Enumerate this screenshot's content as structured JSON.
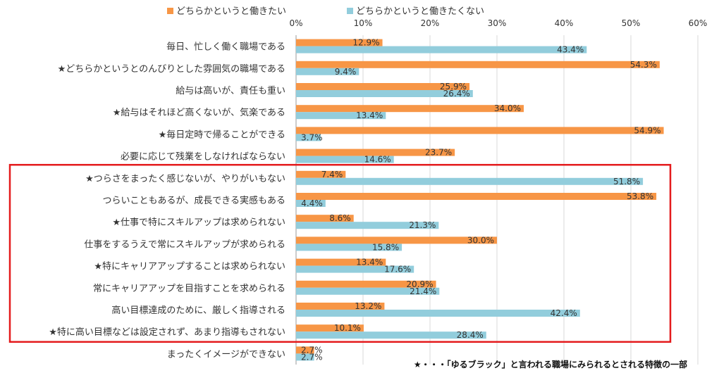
{
  "chart_data": {
    "type": "bar",
    "orientation": "horizontal",
    "xlim": [
      0,
      60
    ],
    "ticks": [
      0,
      10,
      20,
      30,
      40,
      50,
      60
    ],
    "tick_suffix": "%",
    "grid": true,
    "legend_position": "top",
    "categories": [
      "毎日、忙しく働く職場である",
      "★どちらかというとのんびりとした雰囲気の職場である",
      "給与は高いが、責任も重い",
      "★給与はそれほど高くないが、気楽である",
      "★毎日定時で帰ることができる",
      "必要に応じて残業をしなければならない",
      "★つらさをまったく感じないが、やりがいもない",
      "つらいこともあるが、成長できる実感もある",
      "★仕事で特にスキルアップは求められない",
      "仕事をするうえで常にスキルアップが求められる",
      "★特にキャリアアップすることは求められない",
      "常にキャリアアップを目指すことを求められる",
      "高い目標達成のために、厳しく指導される",
      "★特に高い目標などは設定されず、あまり指導もされない",
      "まったくイメージができない"
    ],
    "series": [
      {
        "name": "どちらかというと働きたい",
        "color": "#F79646",
        "values": [
          12.9,
          54.3,
          25.9,
          34.0,
          54.9,
          23.7,
          7.4,
          53.8,
          8.6,
          30.0,
          13.4,
          20.9,
          13.2,
          10.1,
          2.7
        ]
      },
      {
        "name": "どちらかというと働きたくない",
        "color": "#92CDDC",
        "values": [
          43.4,
          9.4,
          26.4,
          13.4,
          3.7,
          14.6,
          51.8,
          4.4,
          21.3,
          15.8,
          17.6,
          21.4,
          42.4,
          28.4,
          2.7
        ]
      }
    ],
    "highlight_range": [
      6,
      13
    ],
    "highlight_color": "#E41A1C",
    "footnote": "★・・・「ゆるブラック」と言われる職場にみられるとされる特徴の一部"
  }
}
